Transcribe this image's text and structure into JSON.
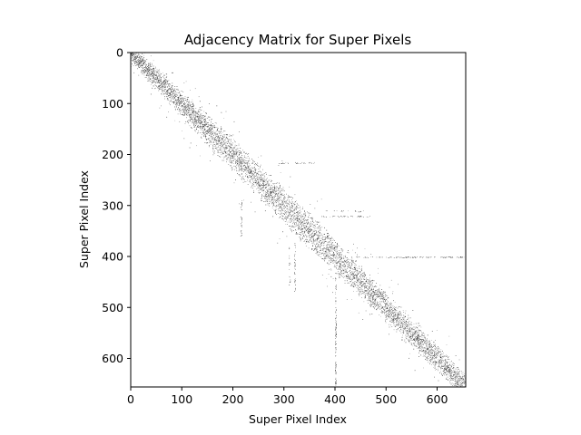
{
  "chart_data": {
    "type": "heatmap",
    "title": "Adjacency Matrix for Super Pixels",
    "xlabel": "Super Pixel Index",
    "ylabel": "Super Pixel Index",
    "matrix_size": 656,
    "xlim": [
      0,
      656
    ],
    "ylim": [
      656,
      0
    ],
    "y_axis_inverted": true,
    "x_ticks": [
      0,
      100,
      200,
      300,
      400,
      500,
      600
    ],
    "y_ticks": [
      0,
      100,
      200,
      300,
      400,
      500,
      600
    ],
    "grid": false,
    "colormap": "binary",
    "colors": {
      "empty": "#ffffff",
      "edge": "#000000"
    },
    "structure": "sparse symmetric binary matrix; nonzero entries concentrated in a band along the main diagonal, about 40 indices wide at the top, widening to about 70 in the middle and narrowing again near the end, with sparse off-diagonal clusters",
    "offdiag_bands": [
      {
        "row": 215,
        "col_from": 290,
        "col_to": 360
      },
      {
        "row": 310,
        "col_from": 380,
        "col_to": 460
      },
      {
        "row": 400,
        "col_from": 440,
        "col_to": 656
      },
      {
        "col": 400,
        "row_from": 500,
        "row_to": 656
      },
      {
        "col": 320,
        "row_from": 370,
        "row_to": 470
      }
    ]
  }
}
